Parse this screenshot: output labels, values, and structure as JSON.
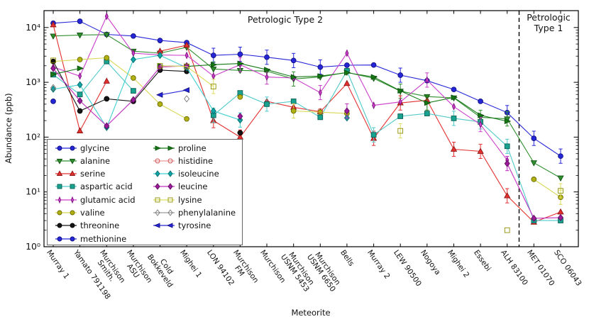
{
  "chart_data": {
    "type": "line",
    "xlabel": "Meteorite",
    "ylabel": "Abundance (ppb)",
    "y_scale": "log",
    "y_range": [
      1,
      20000
    ],
    "y_ticks": [
      {
        "value": 1,
        "label": "10⁰"
      },
      {
        "value": 10,
        "label": "10¹"
      },
      {
        "value": 100,
        "label": "10²"
      },
      {
        "value": 1000,
        "label": "10³"
      },
      {
        "value": 10000,
        "label": "10⁴"
      }
    ],
    "region_labels": {
      "type2": "Petrologic Type 2",
      "type1_line1": "Petrologic",
      "type1_line2": "Type 1"
    },
    "separator": {
      "style": "dashed",
      "between": [
        "ALH 83100",
        "MET 01070"
      ]
    },
    "legend_position": "lower left",
    "categories": [
      [
        "Murray 1"
      ],
      [
        "Yamato 791198"
      ],
      [
        "Murchison",
        "Smith."
      ],
      [
        "Murchison",
        "ASU"
      ],
      [
        "Cold",
        "Bokkeveld"
      ],
      [
        "Mighei 1"
      ],
      [
        "LON 94102"
      ],
      [
        "Murchison",
        "FM"
      ],
      [
        "Murchison"
      ],
      [
        "Murchison",
        "USNM 5453"
      ],
      [
        "Murchison",
        "USNM 6650"
      ],
      [
        "Bells"
      ],
      [
        "Murray 2"
      ],
      [
        "LEW 90500"
      ],
      [
        "Nogoya"
      ],
      [
        "Mighei 2"
      ],
      [
        "Essebi"
      ],
      [
        "ALH 83100"
      ],
      [
        "MET 01070"
      ],
      [
        "SCO 06043"
      ]
    ],
    "series": [
      {
        "name": "glycine",
        "marker": "circle",
        "color": "#2626d9",
        "face": "#2626d9",
        "edge": "#101080",
        "values": [
          12000,
          13000,
          7500,
          7000,
          5800,
          5300,
          3100,
          3250,
          2870,
          2500,
          1900,
          2050,
          2070,
          1350,
          1070,
          740,
          450,
          280,
          95,
          45
        ],
        "err": [
          6,
          7,
          8,
          9,
          10,
          13,
          17,
          18,
          19
        ]
      },
      {
        "name": "alanine",
        "marker": "tridown",
        "color": "#2f8f2f",
        "face": "#2f8f2f",
        "edge": "#145214",
        "values": [
          7000,
          7300,
          7400,
          3700,
          3400,
          4350,
          1750,
          1650,
          1600,
          1150,
          1250,
          1520,
          1180,
          690,
          550,
          520,
          230,
          215,
          34,
          18
        ],
        "err": [
          6,
          9,
          13,
          16,
          17
        ]
      },
      {
        "name": "serine",
        "marker": "triup",
        "color": "#e43030",
        "face": "#e43030",
        "edge": "#8f1414",
        "values": [
          11200,
          130,
          1050,
          null,
          3700,
          4750,
          200,
          100,
          450,
          350,
          290,
          950,
          95,
          420,
          470,
          60,
          55,
          8.5,
          2.8,
          4.3
        ],
        "err": [
          6,
          7,
          12,
          13,
          15,
          16,
          17
        ]
      },
      {
        "name": "aspartic acid",
        "marker": "square",
        "color": "#4fc9c9",
        "face": "#18a290",
        "edge": "#0a5f54",
        "values": [
          1380,
          600,
          2400,
          700,
          null,
          null,
          250,
          640,
          400,
          450,
          230,
          1620,
          110,
          240,
          270,
          220,
          190,
          68,
          3,
          3
        ],
        "err": [
          6,
          8,
          12,
          15,
          16,
          17
        ]
      },
      {
        "name": "glutamic acid",
        "marker": "thindiamond",
        "color": "#cb3fcb",
        "face": "#cb3fcb",
        "edge": "#7c117c",
        "values": [
          1900,
          1300,
          16000,
          3400,
          3150,
          3100,
          1300,
          2100,
          1250,
          1200,
          650,
          3400,
          380,
          440,
          1100,
          360,
          170,
          38,
          null,
          null
        ],
        "err": [
          7,
          8,
          10,
          14,
          16
        ]
      },
      {
        "name": "valine",
        "marker": "circle",
        "color": "#d8d855",
        "face": "#b1b113",
        "edge": "#6b6b00",
        "values": [
          2400,
          2600,
          2800,
          1200,
          400,
          215,
          null,
          540,
          null,
          300,
          285,
          270,
          null,
          null,
          null,
          null,
          null,
          null,
          17,
          8
        ],
        "err": [
          9,
          19
        ]
      },
      {
        "name": "threonine",
        "marker": "circle",
        "color": "#151515",
        "face": "#151515",
        "edge": "#000000",
        "values": [
          2400,
          300,
          500,
          450,
          1670,
          1580,
          null,
          120,
          null,
          null,
          null,
          null,
          null,
          null,
          null,
          null,
          null,
          null,
          null,
          null
        ],
        "err": []
      },
      {
        "name": "methionine",
        "marker": "circle",
        "color": "#2626d9",
        "face": "#2626d9",
        "edge": "#101080",
        "values": [
          450,
          null,
          null,
          null,
          null,
          null,
          null,
          null,
          null,
          null,
          null,
          null,
          null,
          null,
          null,
          null,
          null,
          null,
          null,
          null
        ],
        "err": []
      },
      {
        "name": "proline",
        "marker": "arrowright",
        "color": "#157a15",
        "face": "#157a15",
        "edge": "#0c4d0c",
        "values": [
          1400,
          1800,
          null,
          null,
          2000,
          1950,
          2100,
          2200,
          1700,
          1250,
          1300,
          1500,
          1250,
          700,
          420,
          530,
          250,
          195,
          null,
          null
        ],
        "err": [
          14
        ]
      },
      {
        "name": "histidine",
        "marker": "opencircle",
        "color": "#ef9a9a",
        "face": "none",
        "edge": "#d05050",
        "values": [
          null,
          null,
          null,
          null,
          null,
          null,
          null,
          null,
          null,
          null,
          300,
          null,
          null,
          null,
          null,
          null,
          null,
          null,
          null,
          null
        ],
        "err": []
      },
      {
        "name": "isoleucine",
        "marker": "diamond",
        "color": "#3fd0d0",
        "face": "#0da5a5",
        "edge": "#076a6a",
        "values": [
          750,
          900,
          150,
          2600,
          3100,
          1850,
          300,
          205,
          null,
          null,
          null,
          225,
          null,
          null,
          null,
          null,
          null,
          null,
          null,
          null
        ],
        "err": [
          7
        ]
      },
      {
        "name": "leucine",
        "marker": "diamond",
        "color": "#c02ec0",
        "face": "#9b1b9b",
        "edge": "#5e0b5e",
        "values": [
          1800,
          460,
          160,
          480,
          1900,
          2000,
          null,
          240,
          null,
          null,
          null,
          300,
          null,
          null,
          null,
          null,
          null,
          33,
          3.3,
          3.4
        ],
        "err": [
          11,
          17
        ]
      },
      {
        "name": "lysine",
        "marker": "opensquare",
        "color": "#dede60",
        "face": "none",
        "edge": "#8f8f00",
        "values": [
          2500,
          null,
          null,
          null,
          2000,
          1950,
          840,
          null,
          null,
          null,
          null,
          null,
          null,
          130,
          null,
          null,
          null,
          2,
          null,
          10.5
        ],
        "err": [
          6,
          13,
          19
        ]
      },
      {
        "name": "phenylalanine",
        "marker": "opendiamond",
        "color": "#9a9a9a",
        "face": "none",
        "edge": "#777777",
        "values": [
          800,
          null,
          null,
          null,
          null,
          500,
          null,
          null,
          null,
          null,
          null,
          null,
          null,
          null,
          null,
          null,
          null,
          null,
          null,
          null
        ],
        "err": []
      },
      {
        "name": "tyrosine",
        "marker": "arrowleft",
        "color": "#2626d9",
        "face": "#2626d9",
        "edge": "#101080",
        "values": [
          null,
          null,
          null,
          null,
          590,
          720,
          null,
          null,
          null,
          null,
          null,
          null,
          null,
          null,
          null,
          null,
          null,
          null,
          null,
          null
        ],
        "err": []
      }
    ]
  }
}
